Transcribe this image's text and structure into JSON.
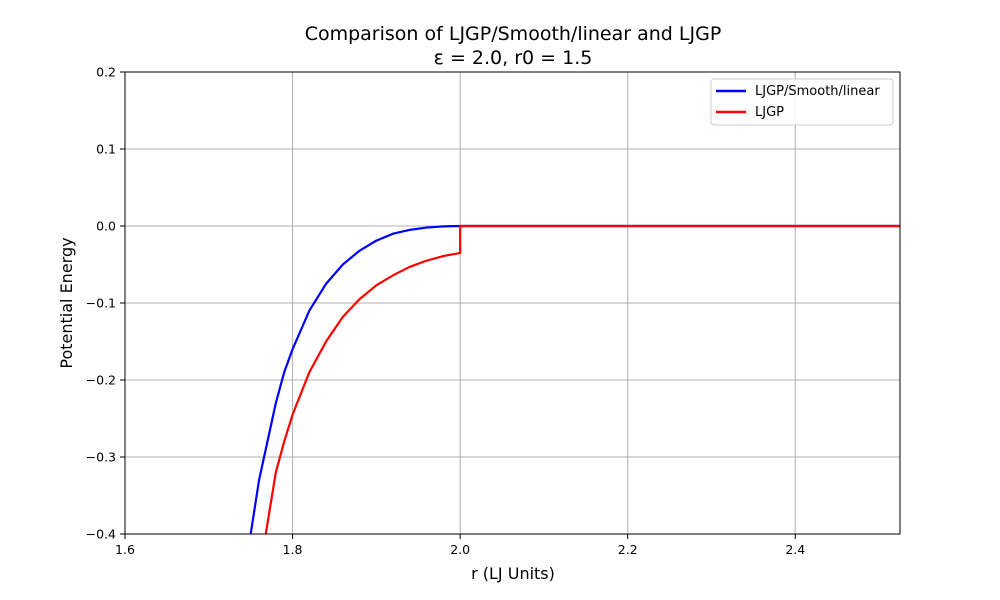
{
  "chart_data": {
    "type": "line",
    "title": "Comparison of LJGP/Smooth/linear and LJGP",
    "subtitle": "ε = 2.0, r0 = 1.5",
    "xlabel": "r (LJ Units)",
    "ylabel": "Potential Energy",
    "xlim": [
      1.6,
      2.525
    ],
    "ylim": [
      -0.4,
      0.2
    ],
    "xticks": [
      "1.6",
      "1.8",
      "2.0",
      "2.2",
      "2.4"
    ],
    "yticks": [
      "0.2",
      "0.1",
      "0.0",
      "−0.1",
      "−0.2",
      "−0.3",
      "−0.4"
    ],
    "grid": true,
    "legend_position": "top-right",
    "series": [
      {
        "name": "LJGP/Smooth/linear",
        "color": "#0000ff",
        "x": [
          1.75,
          1.76,
          1.77,
          1.78,
          1.79,
          1.8,
          1.82,
          1.84,
          1.86,
          1.88,
          1.9,
          1.92,
          1.94,
          1.96,
          1.98,
          2.0,
          2.1,
          2.2,
          2.3,
          2.4,
          2.525
        ],
        "y": [
          -0.4,
          -0.33,
          -0.28,
          -0.23,
          -0.19,
          -0.16,
          -0.11,
          -0.075,
          -0.05,
          -0.032,
          -0.019,
          -0.01,
          -0.005,
          -0.002,
          -0.0005,
          0.0,
          0.0,
          0.0,
          0.0,
          0.0,
          0.0
        ]
      },
      {
        "name": "LJGP",
        "color": "#ff0000",
        "x": [
          1.768,
          1.78,
          1.79,
          1.8,
          1.82,
          1.84,
          1.86,
          1.88,
          1.9,
          1.92,
          1.94,
          1.96,
          1.98,
          2.0,
          2.0,
          2.1,
          2.2,
          2.3,
          2.4,
          2.525
        ],
        "y": [
          -0.4,
          -0.32,
          -0.28,
          -0.245,
          -0.19,
          -0.15,
          -0.118,
          -0.095,
          -0.077,
          -0.064,
          -0.053,
          -0.045,
          -0.039,
          -0.035,
          0.0,
          0.0,
          0.0,
          0.0,
          0.0,
          0.0
        ]
      }
    ]
  }
}
